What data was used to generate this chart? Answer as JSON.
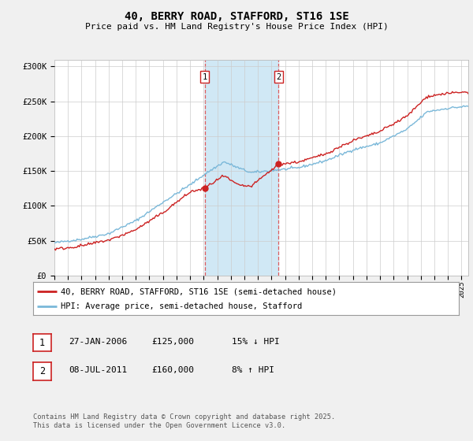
{
  "title": "40, BERRY ROAD, STAFFORD, ST16 1SE",
  "subtitle": "Price paid vs. HM Land Registry's House Price Index (HPI)",
  "ylabel_ticks": [
    "£0",
    "£50K",
    "£100K",
    "£150K",
    "£200K",
    "£250K",
    "£300K"
  ],
  "ytick_values": [
    0,
    50000,
    100000,
    150000,
    200000,
    250000,
    300000
  ],
  "ylim": [
    0,
    310000
  ],
  "xlim_start": 1995.0,
  "xlim_end": 2025.5,
  "hpi_color": "#7ab8d9",
  "price_color": "#cc2222",
  "sale1_date": 2006.07,
  "sale1_price": 125000,
  "sale2_date": 2011.52,
  "sale2_price": 160000,
  "vline_color": "#dd4444",
  "span_color": "#d0e8f5",
  "legend_label1": "40, BERRY ROAD, STAFFORD, ST16 1SE (semi-detached house)",
  "legend_label2": "HPI: Average price, semi-detached house, Stafford",
  "footer": "Contains HM Land Registry data © Crown copyright and database right 2025.\nThis data is licensed under the Open Government Licence v3.0.",
  "bg_color": "#f0f0f0",
  "plot_bg_color": "#ffffff",
  "grid_color": "#cccccc"
}
